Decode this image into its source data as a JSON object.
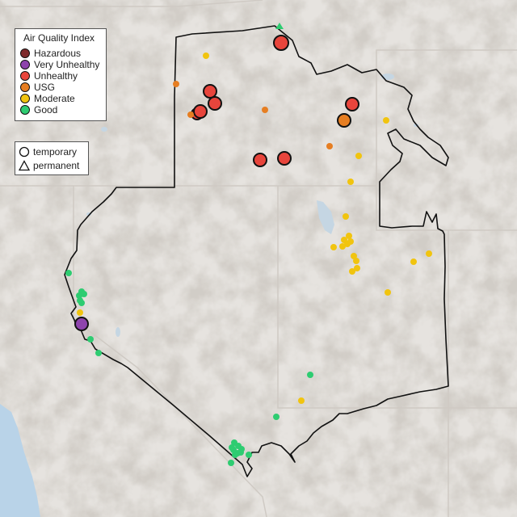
{
  "legend": {
    "title": "Air Quality Index",
    "categories": [
      {
        "label": "Hazardous",
        "color": "#7e2a2c"
      },
      {
        "label": "Very Unhealthy",
        "color": "#8e44ad"
      },
      {
        "label": "Unhealthy",
        "color": "#e8453c"
      },
      {
        "label": "USG",
        "color": "#e67e22"
      },
      {
        "label": "Moderate",
        "color": "#f1c40f"
      },
      {
        "label": "Good",
        "color": "#2ecc71"
      }
    ]
  },
  "monitor_types": [
    {
      "label": "temporary",
      "symbol": "circle-icon"
    },
    {
      "label": "permanent",
      "symbol": "triangle-icon"
    }
  ],
  "colors": {
    "land": "#e6e3df",
    "ocean": "#b9d3e8",
    "boundary": "#111111",
    "state_lines": "#cfcac4"
  }
}
